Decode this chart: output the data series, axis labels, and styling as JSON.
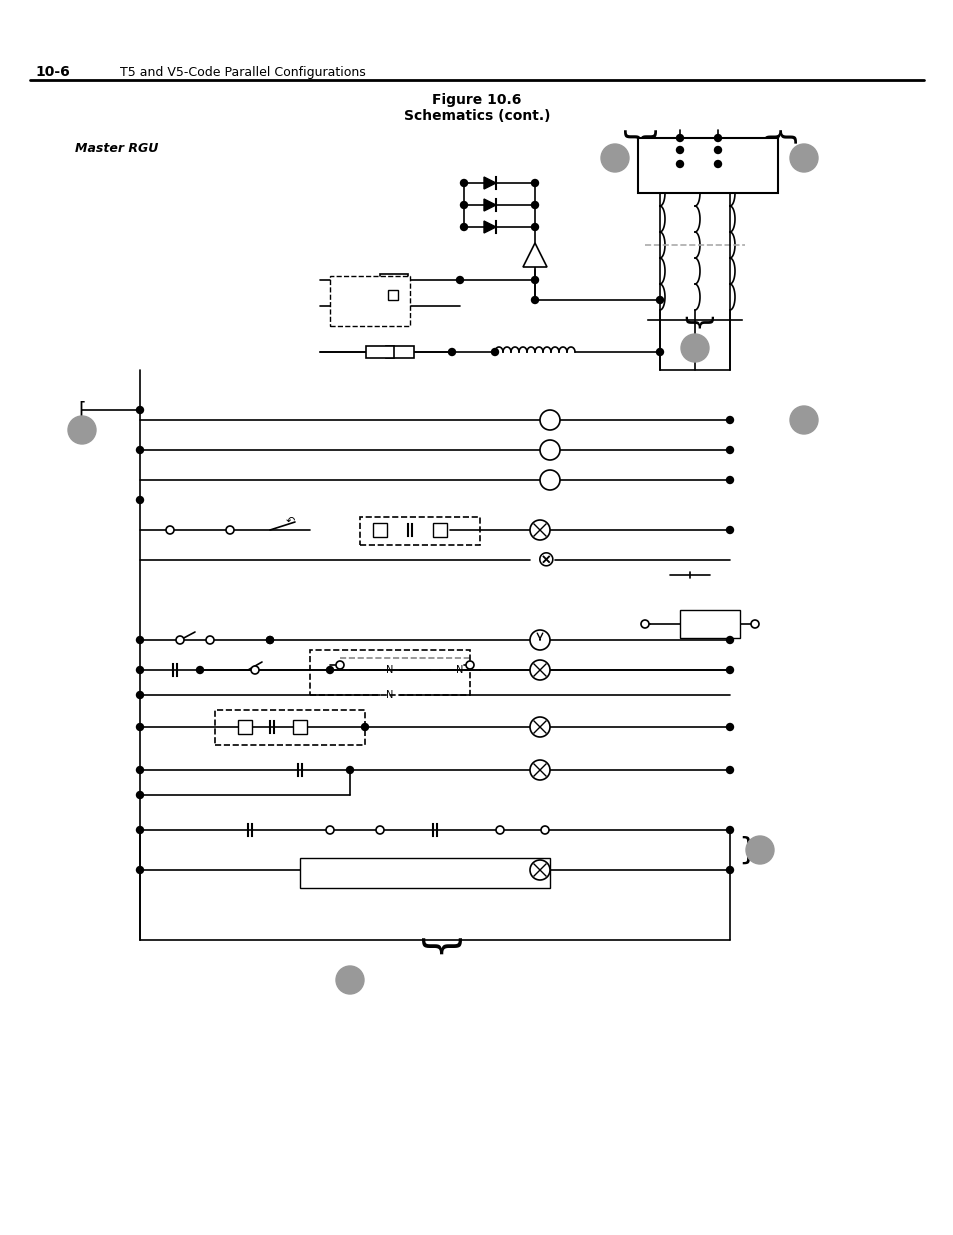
{
  "title_line1": "Figure 10.6",
  "title_line2": "Schematics (cont.)",
  "header_left": "10-6",
  "header_right": "T5 and V5-Code Parallel Configurations",
  "master_rgu_label": "Master RGU",
  "bg_color": "#ffffff",
  "line_color": "#000000",
  "gray_color": "#808080",
  "light_gray": "#cccccc",
  "circle_color": "#999999",
  "dashed_color": "#444444"
}
